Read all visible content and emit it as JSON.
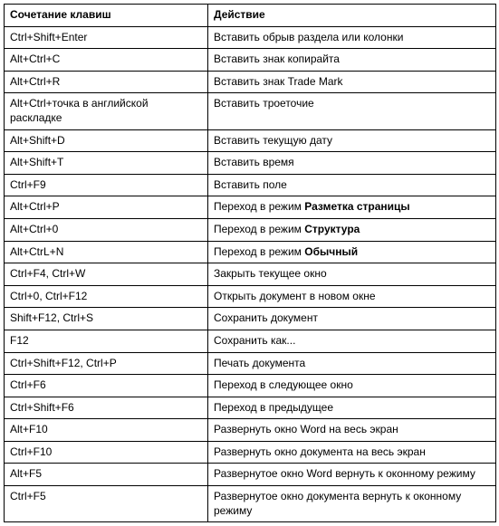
{
  "table": {
    "header": {
      "shortcut": "Сочетание клавиш",
      "action": "Действие"
    },
    "rows": [
      {
        "shortcut": "Ctrl+Shift+Enter",
        "action": "Вставить обрыв раздела или колонки"
      },
      {
        "shortcut": "Alt+Ctrl+C",
        "action": "Вставить знак копирайта"
      },
      {
        "shortcut": "Alt+Ctrl+R",
        "action": "Вставить знак Trade Mark"
      },
      {
        "shortcut": "Alt+Ctrl+точка в английской раскладке",
        "action": "Вставить троеточие"
      },
      {
        "shortcut": "Alt+Shift+D",
        "action": "Вставить текущую дату"
      },
      {
        "shortcut": "Alt+Shift+T",
        "action": "Вставить время"
      },
      {
        "shortcut": "Ctrl+F9",
        "action": "Вставить поле"
      },
      {
        "shortcut": "Alt+Ctrl+P",
        "action_prefix": "Переход в режим ",
        "action_bold": "Разметка страницы"
      },
      {
        "shortcut": "Alt+Ctrl+0",
        "action_prefix": "Переход в режим ",
        "action_bold": "Структура"
      },
      {
        "shortcut": "Alt+CtrL+N",
        "action_prefix": "Переход в режим ",
        "action_bold": "Обычный"
      },
      {
        "shortcut": "Ctrl+F4, Ctrl+W",
        "action": "Закрыть текущее окно"
      },
      {
        "shortcut": "Ctrl+0, Ctrl+F12",
        "action": "Открыть документ в новом окне"
      },
      {
        "shortcut": "Shift+F12, Ctrl+S",
        "action": "Сохранить документ"
      },
      {
        "shortcut": "F12",
        "action": "Сохранить как..."
      },
      {
        "shortcut": "Ctrl+Shift+F12, Ctrl+P",
        "action": "Печать документа"
      },
      {
        "shortcut": "Ctrl+F6",
        "action": "Переход в следующее окно"
      },
      {
        "shortcut": "Ctrl+Shift+F6",
        "action": "Переход в предыдущее"
      },
      {
        "shortcut": "Alt+F10",
        "action": "Развернуть окно Word на весь экран"
      },
      {
        "shortcut": "Ctrl+F10",
        "action": "Развернуть окно документа на весь экран"
      },
      {
        "shortcut": "Alt+F5",
        "action": "Развернутое окно Word вернуть к оконному режиму"
      },
      {
        "shortcut": "Ctrl+F5",
        "action": "Развернутое окно документа вернуть к оконному режиму"
      }
    ]
  }
}
